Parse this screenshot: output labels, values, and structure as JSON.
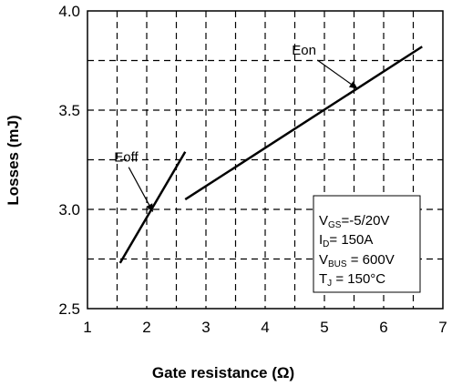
{
  "chart_data": {
    "type": "line",
    "xlabel": "Gate resistance (Ω)",
    "ylabel": "Losses (mJ)",
    "xlim": [
      1,
      7
    ],
    "ylim": [
      2.5,
      4.0
    ],
    "x_ticks": [
      "1",
      "2",
      "3",
      "4",
      "5",
      "6",
      "7"
    ],
    "y_ticks": [
      "2.5",
      "3.0",
      "3.5",
      "4.0"
    ],
    "grid": true,
    "grid_style": "dashed",
    "line_color": "#000000",
    "series": [
      {
        "name": "Eon",
        "x": [
          2.65,
          6.65
        ],
        "y": [
          3.05,
          3.82
        ]
      },
      {
        "name": "Eoff",
        "x": [
          1.55,
          2.65
        ],
        "y": [
          2.73,
          3.29
        ]
      }
    ],
    "annotations": [
      {
        "label": "Eon",
        "text_at": [
          4.45,
          3.78
        ],
        "arrow_to": [
          5.55,
          3.61
        ]
      },
      {
        "label": "Eoff",
        "text_at": [
          1.45,
          3.24
        ],
        "arrow_to": [
          2.1,
          2.99
        ]
      }
    ],
    "conditions": {
      "line1": {
        "main": "V",
        "sub": "GS",
        "rest": "=-5/20V"
      },
      "line2": {
        "main": "I",
        "sub": "D",
        "rest": "= 150A"
      },
      "line3": {
        "main": "V",
        "sub": "BUS",
        "rest": " = 600V"
      },
      "line4": {
        "main": "T",
        "sub": "J",
        "rest": " = 150°C"
      }
    }
  }
}
